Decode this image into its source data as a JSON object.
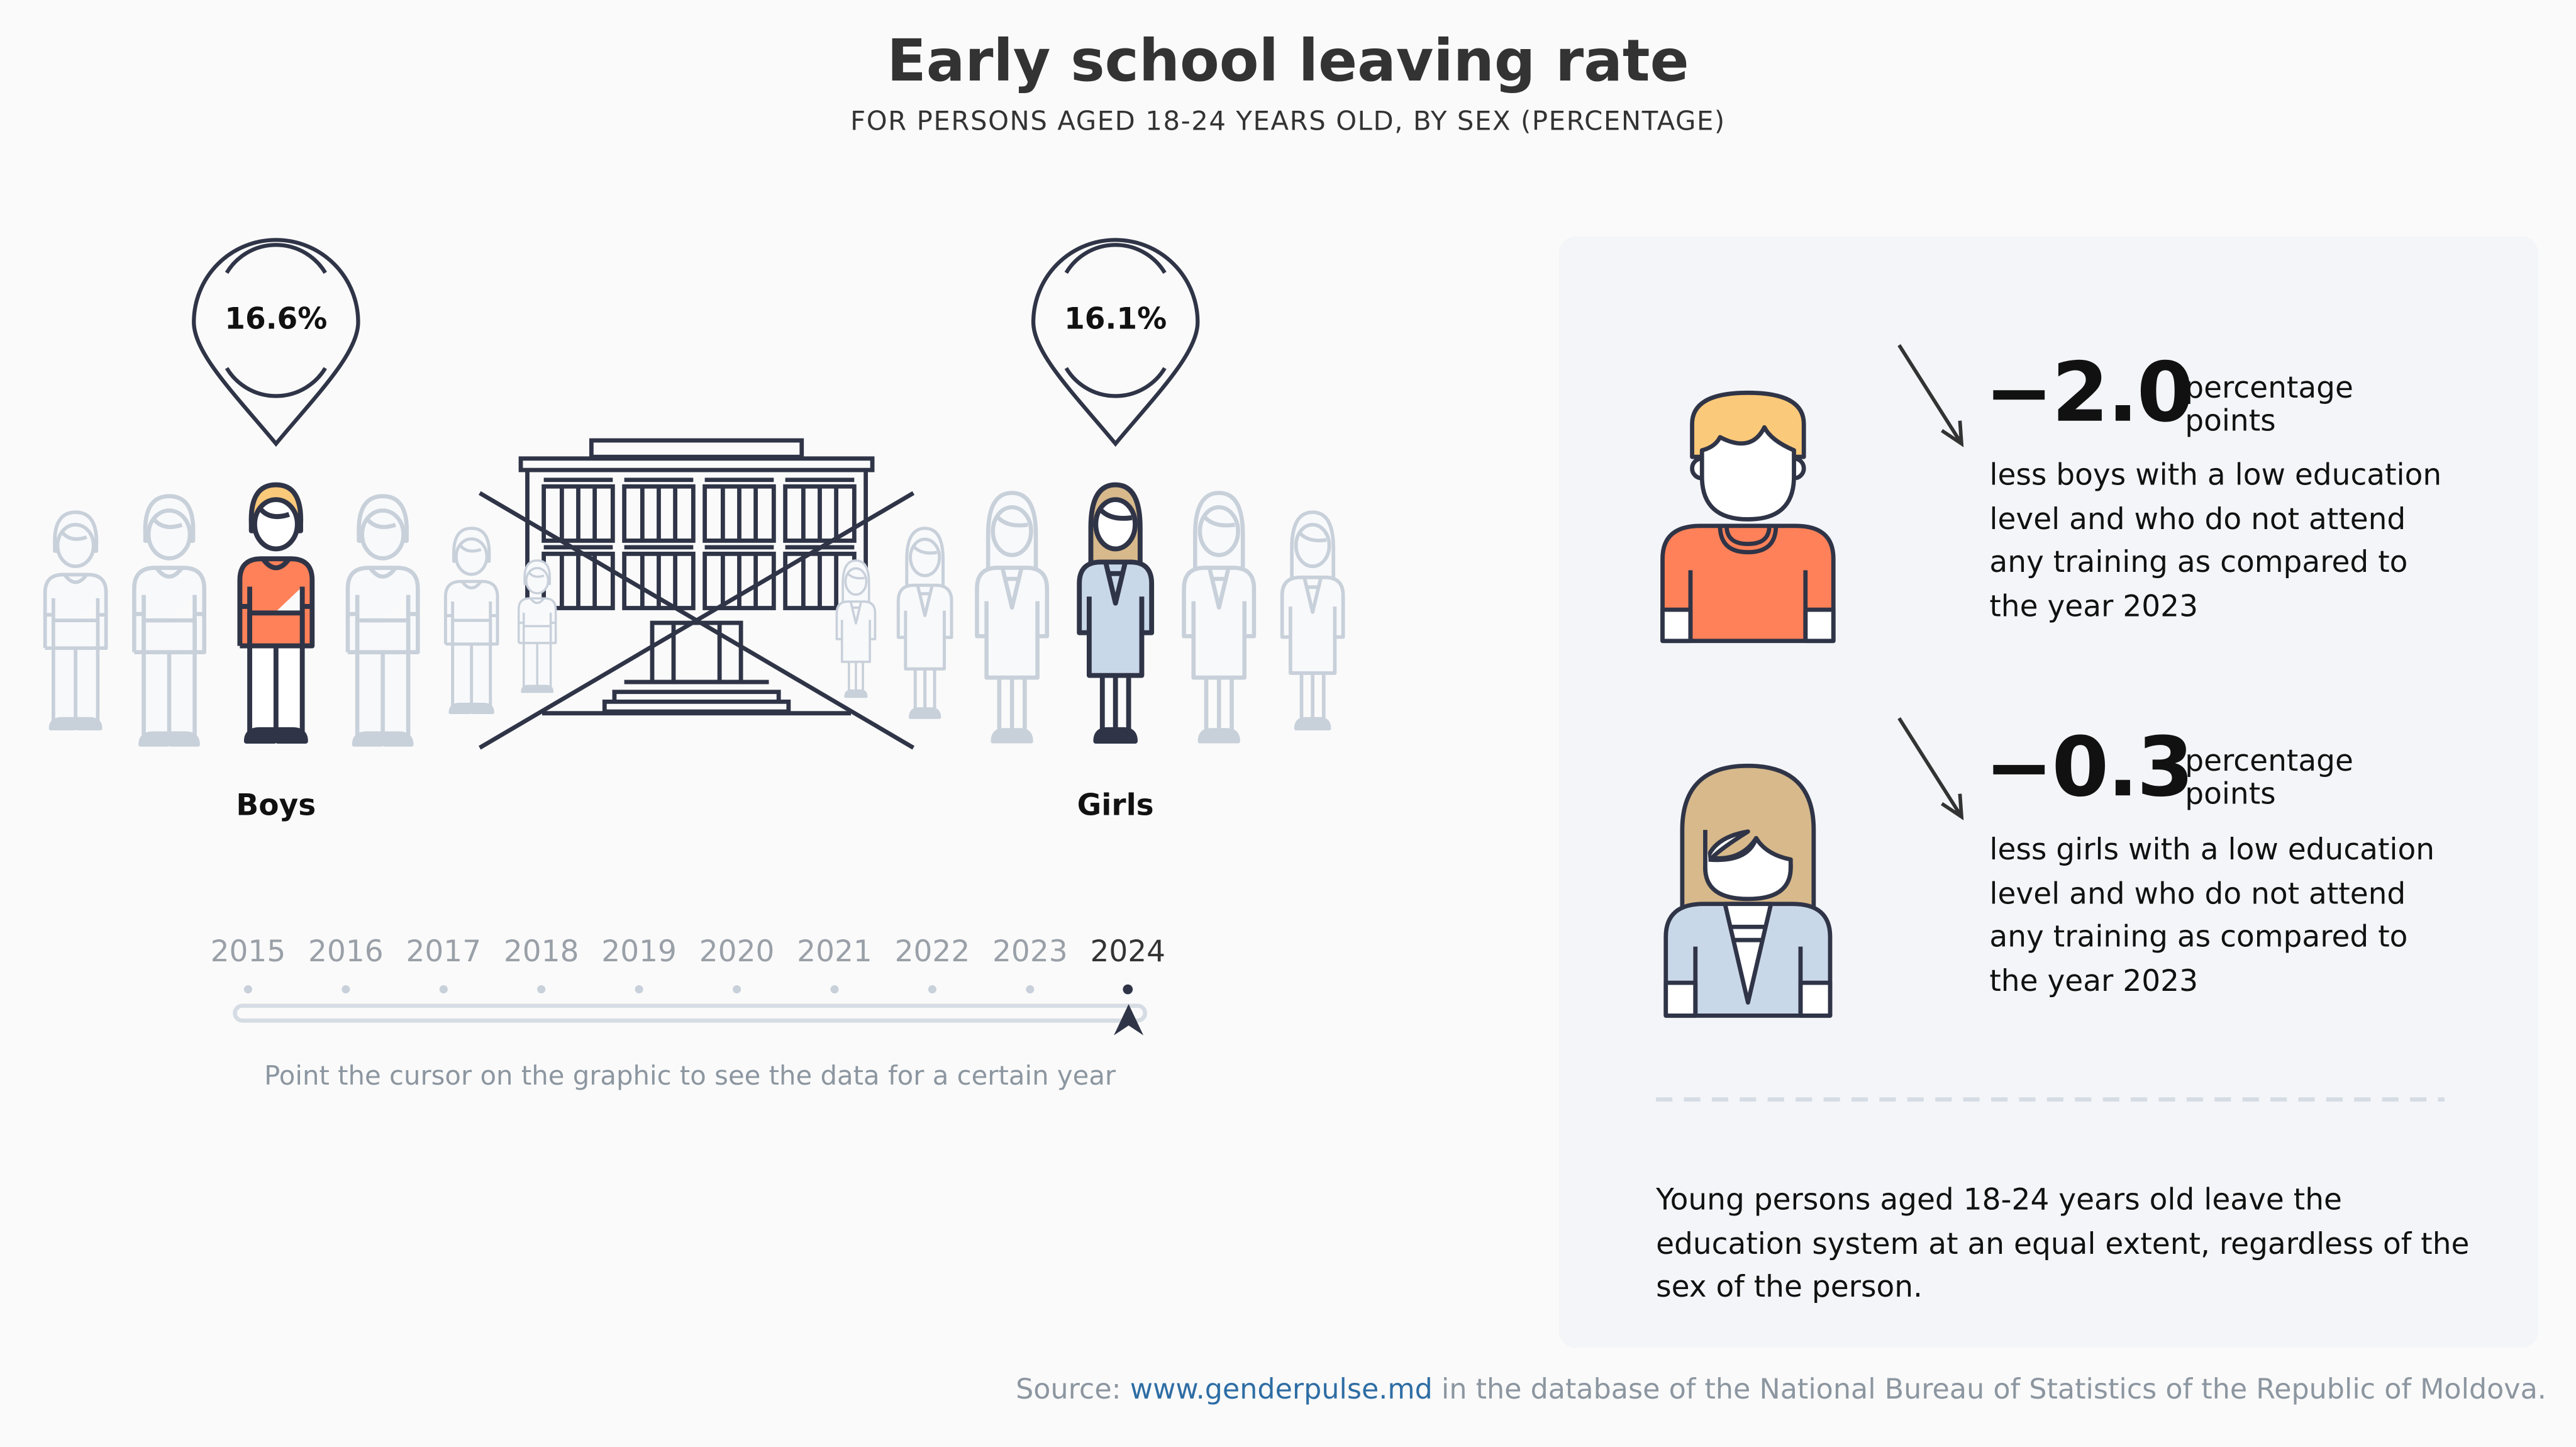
{
  "header": {
    "title": "Early school leaving rate",
    "subtitle": "FOR PERSONS AGED 18-24 YEARS OLD, BY SEX (PERCENTAGE)"
  },
  "illustration": {
    "boys": {
      "label": "Boys",
      "value": "16.6%"
    },
    "girls": {
      "label": "Girls",
      "value": "16.1%"
    },
    "colors": {
      "outline": "#2f3447",
      "inactive": "#c8d0da",
      "boy_shirt": "#ff8159",
      "boy_hair": "#fbc97a",
      "girl_hair": "#d7b98b",
      "girl_coat": "#c9d8e8"
    }
  },
  "timeline": {
    "years": [
      "2015",
      "2016",
      "2017",
      "2018",
      "2019",
      "2020",
      "2021",
      "2022",
      "2023",
      "2024"
    ],
    "selected": "2024",
    "hint": "Point the cursor on the graphic to see the data for a certain year"
  },
  "panel": {
    "boys": {
      "change": "−2.0",
      "unit_line1": "percentage",
      "unit_line2": "points",
      "description": "less boys with a low education level and who do not attend any training as compared to the year 2023",
      "icon": "arrow-down-right-icon"
    },
    "girls": {
      "change": "−0.3",
      "unit_line1": "percentage",
      "unit_line2": "points",
      "description": "less girls with a low education level and who do not attend any training as compared to the year 2023",
      "icon": "arrow-down-right-icon"
    },
    "summary": "Young persons aged 18-24 years old leave the education system at an equal extent, regardless of the sex of the person."
  },
  "source": {
    "prefix": "Source: ",
    "link_text": "www.genderpulse.md",
    "suffix": " in the database of the National Bureau of Statistics of the Republic of Moldova."
  }
}
